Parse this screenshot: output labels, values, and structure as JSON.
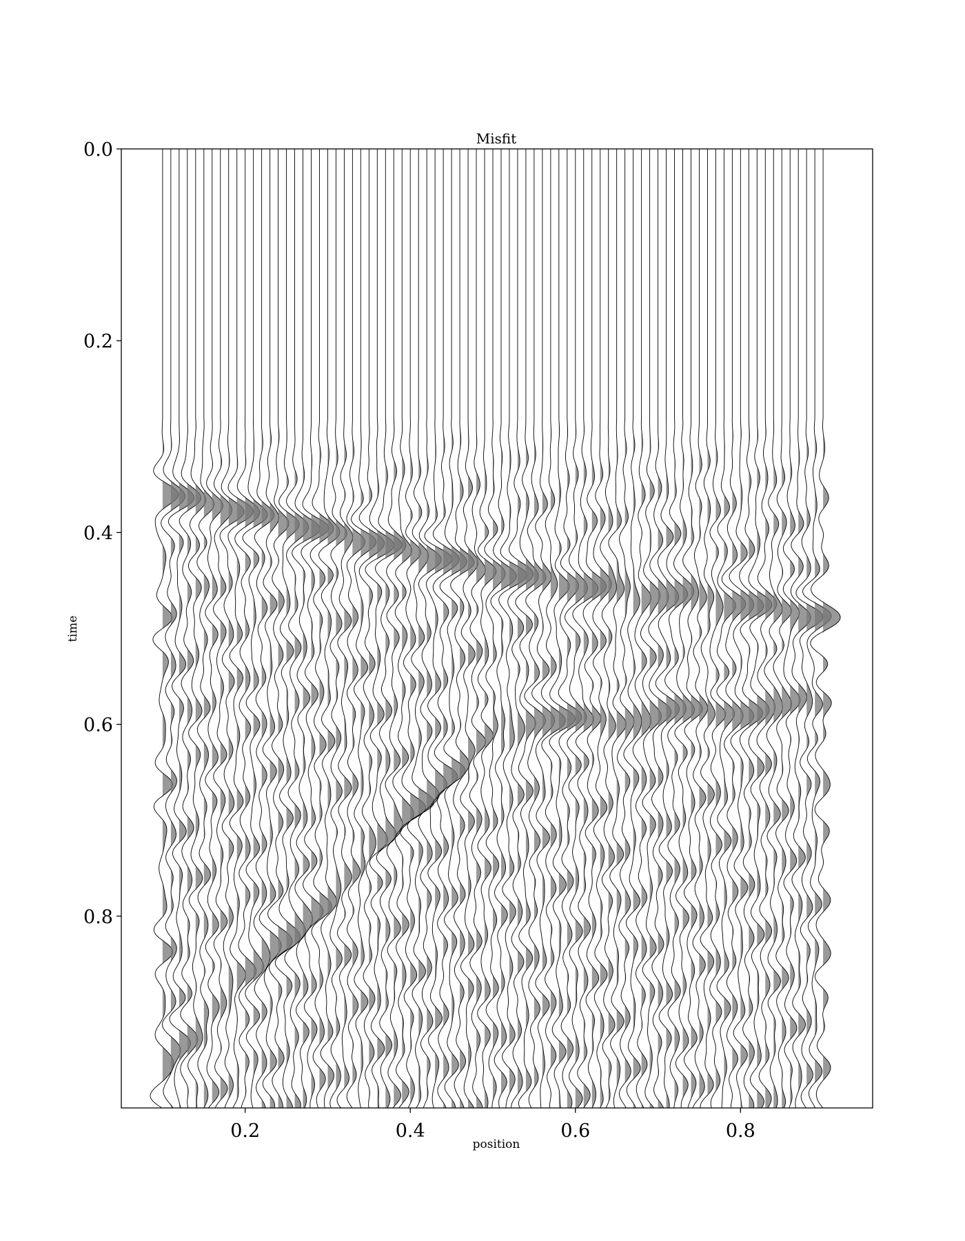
{
  "chart_data": {
    "type": "seismic-wiggle",
    "title": "Misfit",
    "xlabel": "position",
    "ylabel": "time",
    "xlim": [
      0.05,
      0.96
    ],
    "ylim": [
      1.0,
      0.0
    ],
    "y_inverted": true,
    "xticks": [
      0.2,
      0.4,
      0.6,
      0.8
    ],
    "xtick_labels": [
      "0.2",
      "0.4",
      "0.6",
      "0.8"
    ],
    "yticks": [
      0.0,
      0.2,
      0.4,
      0.6,
      0.8
    ],
    "ytick_labels": [
      "0.0",
      "0.2",
      "0.4",
      "0.6",
      "0.8"
    ],
    "traces": {
      "count": 81,
      "first_position": 0.1,
      "last_position": 0.9
    },
    "fill_color": "#777777",
    "line_color": "#000000",
    "events": [
      {
        "description": "upper event",
        "positions": [
          0.1,
          0.5,
          0.9
        ],
        "times": [
          0.36,
          0.44,
          0.49
        ]
      },
      {
        "description": "lower event",
        "positions": [
          0.1,
          0.5,
          0.9
        ],
        "times": [
          0.95,
          0.6,
          0.58
        ]
      }
    ]
  }
}
